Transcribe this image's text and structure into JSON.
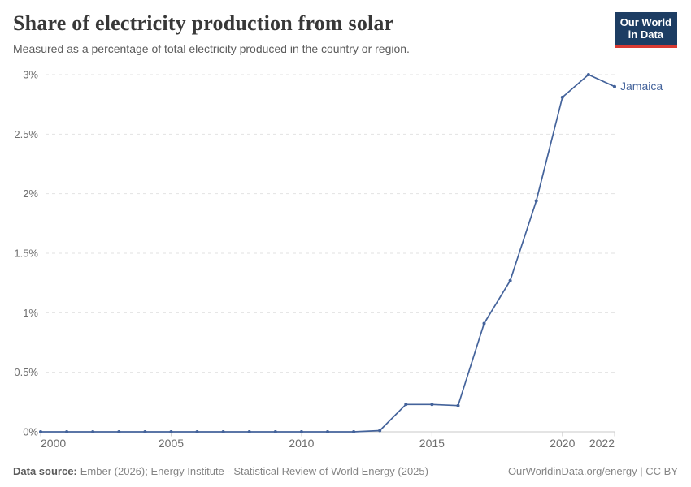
{
  "header": {
    "title": "Share of electricity production from solar",
    "subtitle": "Measured as a percentage of total electricity produced in the country or region.",
    "logo": {
      "line1": "Our World",
      "line2": "in Data"
    }
  },
  "chart_data": {
    "type": "line",
    "title": "Share of electricity production from solar",
    "xlabel": "",
    "ylabel": "",
    "xlim": [
      2000,
      2022
    ],
    "ylim": [
      0,
      3
    ],
    "grid": "horizontal-dashed",
    "legend_position": "end-of-line-label",
    "x": [
      2000,
      2001,
      2002,
      2003,
      2004,
      2005,
      2006,
      2007,
      2008,
      2009,
      2010,
      2011,
      2012,
      2013,
      2014,
      2015,
      2016,
      2017,
      2018,
      2019,
      2020,
      2021,
      2022
    ],
    "series": [
      {
        "name": "Jamaica",
        "color": "#44639b",
        "values": [
          0,
          0,
          0,
          0,
          0,
          0,
          0,
          0,
          0,
          0,
          0,
          0,
          0,
          0.01,
          0.23,
          0.23,
          0.22,
          0.91,
          1.27,
          1.94,
          2.81,
          3.0,
          2.9
        ]
      }
    ],
    "x_ticks": [
      {
        "value": 2000,
        "label": "2000",
        "anchor": "start"
      },
      {
        "value": 2005,
        "label": "2005",
        "anchor": "middle"
      },
      {
        "value": 2010,
        "label": "2010",
        "anchor": "middle"
      },
      {
        "value": 2015,
        "label": "2015",
        "anchor": "middle"
      },
      {
        "value": 2020,
        "label": "2020",
        "anchor": "middle"
      },
      {
        "value": 2022,
        "label": "2022",
        "anchor": "end"
      }
    ],
    "y_ticks": [
      {
        "value": 0,
        "label": "0%"
      },
      {
        "value": 0.5,
        "label": "0.5%"
      },
      {
        "value": 1,
        "label": "1%"
      },
      {
        "value": 1.5,
        "label": "1.5%"
      },
      {
        "value": 2,
        "label": "2%"
      },
      {
        "value": 2.5,
        "label": "2.5%"
      },
      {
        "value": 3,
        "label": "3%"
      }
    ]
  },
  "footer": {
    "datasource_label": "Data source:",
    "datasource_text": "Ember (2026); Energy Institute - Statistical Review of World Energy (2025)",
    "attribution": "OurWorldinData.org/energy | CC BY"
  },
  "colors": {
    "grid": "#e2e2e2",
    "axis": "#c8c8c8",
    "tick": "#cfcfcf",
    "tick_label": "#6e6e6e",
    "logo_bg": "#1d3d63",
    "logo_accent": "#d93a32"
  }
}
